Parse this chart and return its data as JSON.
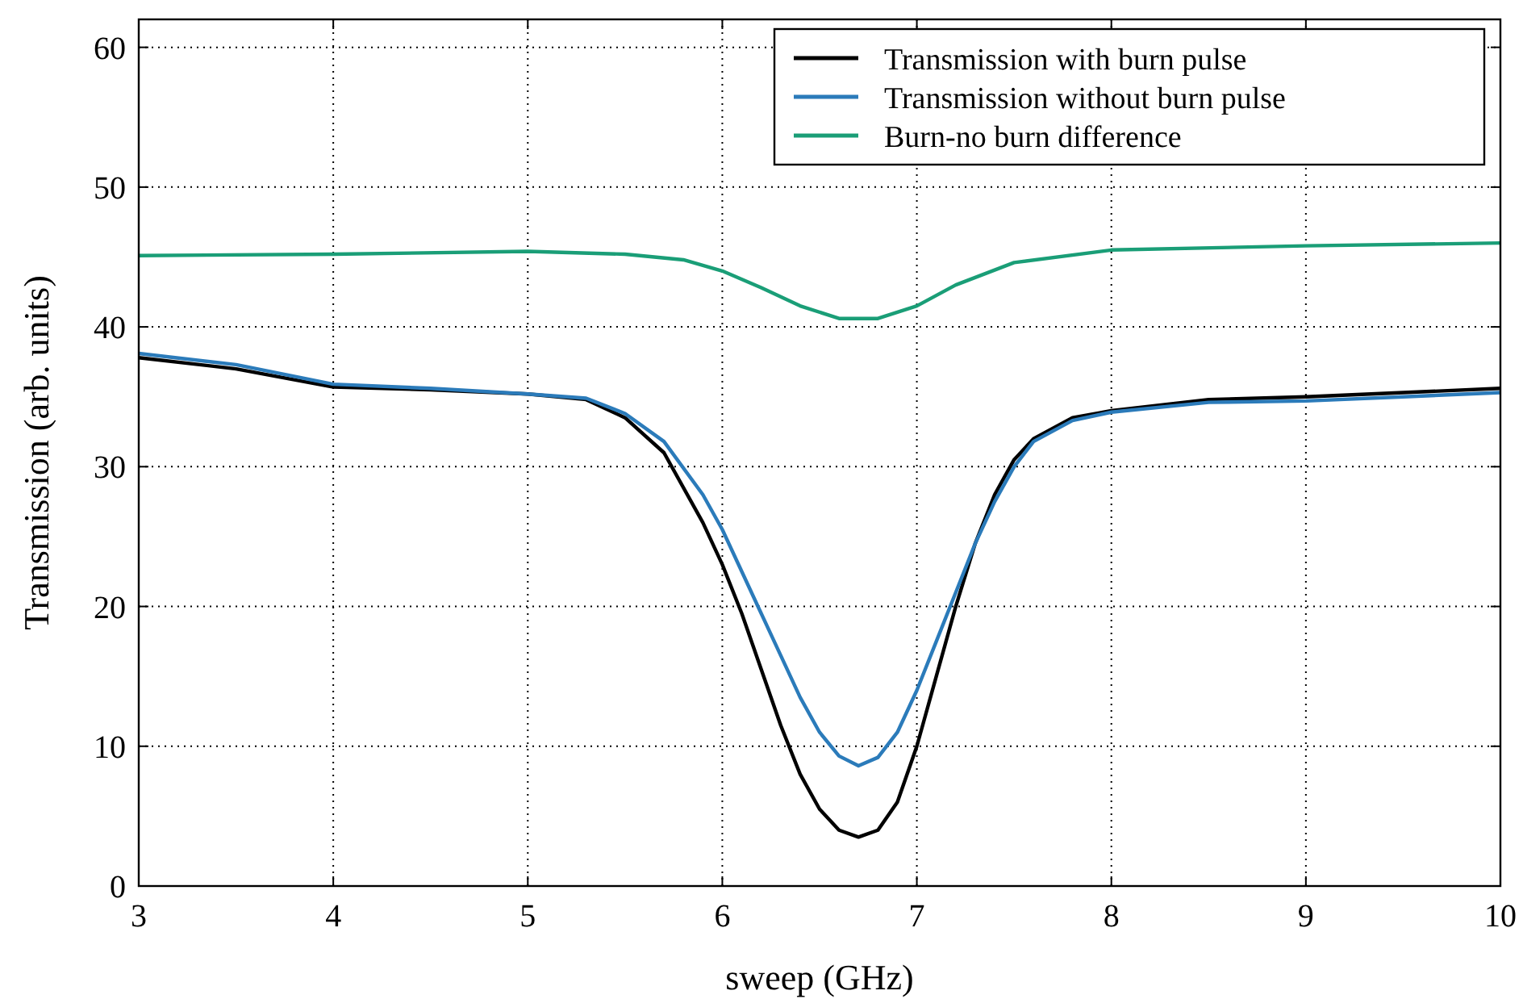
{
  "chart_data": {
    "type": "line",
    "xlabel": "sweep (GHz)",
    "ylabel": "Transmission (arb. units)",
    "xlim": [
      3,
      10
    ],
    "xticks": [
      3,
      4,
      5,
      6,
      7,
      8,
      9,
      10
    ],
    "ylim": [
      0,
      62
    ],
    "yticks": [
      0,
      10,
      20,
      30,
      40,
      50,
      60
    ],
    "grid": true,
    "legend": "top right",
    "line_style": "solid",
    "series": [
      {
        "name": "Transmission with burn pulse",
        "color": "#000000",
        "x": [
          3,
          3.5,
          4,
          4.5,
          5,
          5.3,
          5.5,
          5.7,
          5.9,
          6.0,
          6.1,
          6.2,
          6.3,
          6.4,
          6.5,
          6.6,
          6.7,
          6.8,
          6.9,
          7.0,
          7.1,
          7.2,
          7.3,
          7.4,
          7.5,
          7.6,
          7.8,
          8,
          8.5,
          9,
          9.5,
          10
        ],
        "values": [
          37.8,
          37,
          35.7,
          35.5,
          35.2,
          34.8,
          33.5,
          31,
          26,
          23,
          19.5,
          15.5,
          11.5,
          8,
          5.5,
          4,
          3.5,
          4,
          6,
          10,
          15,
          20,
          24.5,
          28,
          30.5,
          32,
          33.5,
          34,
          34.8,
          35,
          35.3,
          35.6
        ]
      },
      {
        "name": "Transmission without burn pulse",
        "color": "#2b7bba",
        "x": [
          3,
          3.5,
          4,
          4.5,
          5,
          5.3,
          5.5,
          5.7,
          5.9,
          6.0,
          6.1,
          6.2,
          6.3,
          6.4,
          6.5,
          6.6,
          6.7,
          6.8,
          6.9,
          7.0,
          7.1,
          7.2,
          7.3,
          7.4,
          7.5,
          7.6,
          7.8,
          8,
          8.5,
          9,
          9.5,
          10
        ],
        "values": [
          38.1,
          37.3,
          35.9,
          35.6,
          35.2,
          34.9,
          33.8,
          31.8,
          28,
          25.5,
          22.5,
          19.5,
          16.5,
          13.5,
          11,
          9.3,
          8.6,
          9.2,
          11,
          14,
          17.5,
          21,
          24.5,
          27.5,
          30,
          31.8,
          33.3,
          33.9,
          34.6,
          34.7,
          35,
          35.3
        ]
      },
      {
        "name": "Burn-no burn difference",
        "color": "#1a9e77",
        "x": [
          3,
          4,
          5,
          5.5,
          5.8,
          6,
          6.2,
          6.4,
          6.6,
          6.8,
          7.0,
          7.2,
          7.5,
          8,
          9,
          10
        ],
        "values": [
          45.1,
          45.2,
          45.4,
          45.2,
          44.8,
          44,
          42.8,
          41.5,
          40.6,
          40.6,
          41.5,
          43,
          44.6,
          45.5,
          45.8,
          46
        ]
      }
    ]
  }
}
